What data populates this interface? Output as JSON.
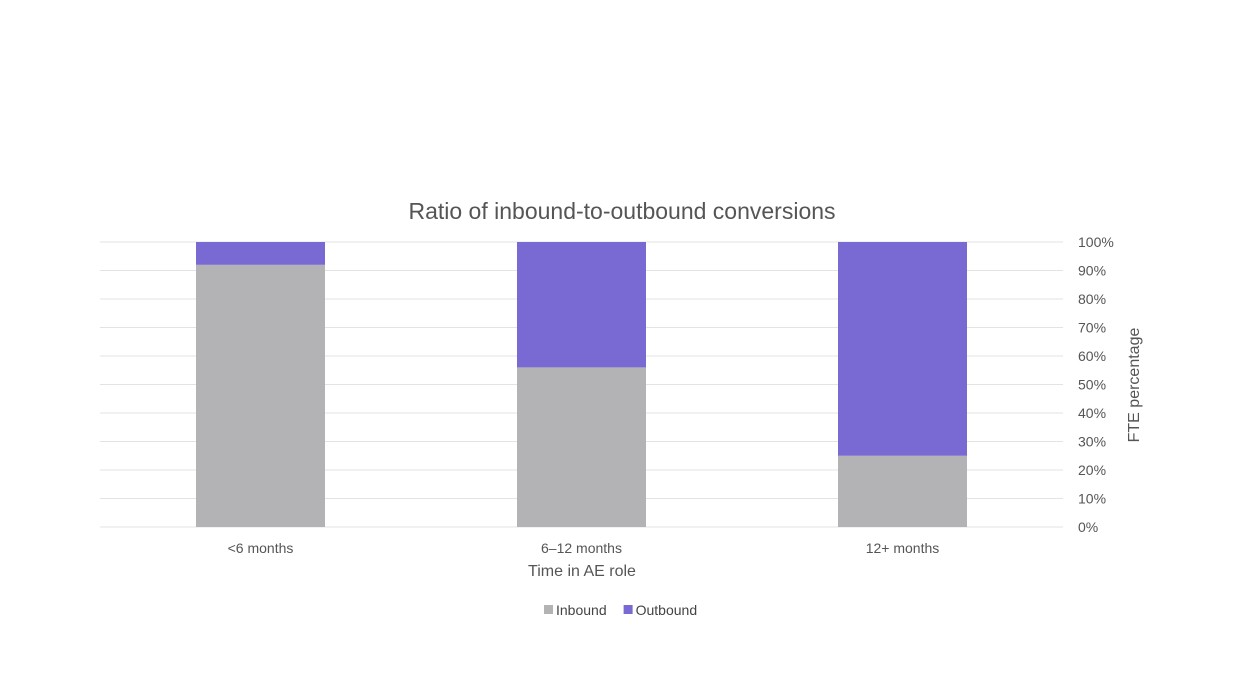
{
  "chart_data": {
    "type": "bar",
    "stacked": true,
    "title": "Ratio of inbound-to-outbound conversions",
    "xlabel": "Time in AE role",
    "ylabel": "FTE percentage",
    "categories": [
      "<6 months",
      "6–12 months",
      "12+ months"
    ],
    "series": [
      {
        "name": "Inbound",
        "color": "#b3b3b5",
        "values": [
          92,
          56,
          25
        ]
      },
      {
        "name": "Outbound",
        "color": "#7869d3",
        "values": [
          8,
          44,
          75
        ]
      }
    ],
    "ylim": [
      0,
      100
    ],
    "yticks": [
      "0%",
      "10%",
      "20%",
      "30%",
      "40%",
      "50%",
      "60%",
      "70%",
      "80%",
      "90%",
      "100%"
    ],
    "y_axis_position": "right",
    "grid": true,
    "legend_position": "bottom"
  }
}
